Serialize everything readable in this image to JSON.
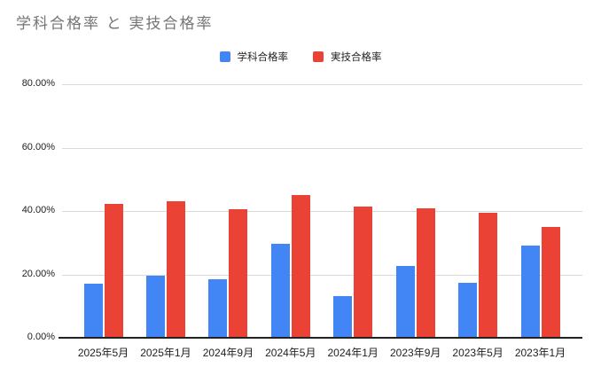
{
  "chart": {
    "title": "学科合格率 と 実技合格率"
  },
  "chart_data": {
    "type": "bar",
    "title": "学科合格率 と 実技合格率",
    "categories": [
      "2025年5月",
      "2025年1月",
      "2024年9月",
      "2024年5月",
      "2024年1月",
      "2023年9月",
      "2023年5月",
      "2023年1月"
    ],
    "series": [
      {
        "id": "written-pass-rate",
        "name": "学科合格率",
        "color": "#4285f4",
        "values": [
          17.1,
          19.5,
          18.6,
          29.7,
          13.2,
          22.8,
          17.3,
          29.2
        ]
      },
      {
        "id": "practical-pass-rate",
        "name": "実技合格率",
        "color": "#ea4335",
        "values": [
          42.2,
          43.0,
          40.6,
          45.0,
          41.5,
          40.9,
          39.5,
          35.0
        ]
      }
    ],
    "xlabel": "",
    "ylabel": "",
    "ylim": [
      0,
      80
    ],
    "yticks": [
      0,
      20,
      40,
      60,
      80
    ],
    "ytick_labels": [
      "0.00%",
      "20.00%",
      "40.00%",
      "60.00%",
      "80.00%"
    ],
    "grid": true,
    "legend_position": "top",
    "colors": {
      "title_text": "#757575",
      "axis_text": "#202124",
      "gridline": "#dadada",
      "axis_line": "#212121",
      "background": "#ffffff"
    }
  }
}
